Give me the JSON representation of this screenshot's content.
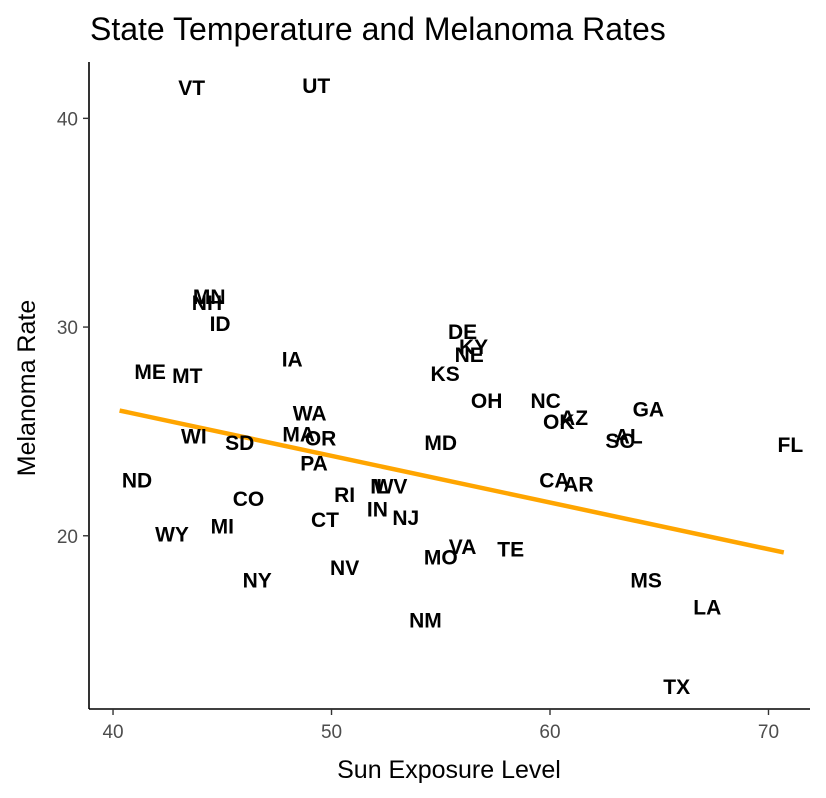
{
  "chart_data": {
    "type": "scatter",
    "title": "State Temperature and Melanoma Rates",
    "xlabel": "Sun Exposure Level",
    "ylabel": "Melanoma Rate",
    "xlim": [
      38.9,
      71.9
    ],
    "ylim": [
      11.7,
      42.7
    ],
    "x_ticks": [
      40,
      50,
      60,
      70
    ],
    "y_ticks": [
      20,
      30,
      40
    ],
    "grid": false,
    "legend": "none",
    "label_color": "#000000",
    "trend_line": {
      "color": "#FFA500",
      "x": [
        40.3,
        70.7
      ],
      "y": [
        26.0,
        19.2
      ]
    },
    "points": [
      {
        "label": "VT",
        "x": 43.6,
        "y": 41.5
      },
      {
        "label": "UT",
        "x": 49.3,
        "y": 41.6
      },
      {
        "label": "MN",
        "x": 44.4,
        "y": 31.5
      },
      {
        "label": "NH",
        "x": 44.3,
        "y": 31.2
      },
      {
        "label": "ID",
        "x": 44.9,
        "y": 30.2
      },
      {
        "label": "DE",
        "x": 56.0,
        "y": 29.8
      },
      {
        "label": "KY",
        "x": 56.5,
        "y": 29.1
      },
      {
        "label": "NE",
        "x": 56.3,
        "y": 28.7
      },
      {
        "label": "IA",
        "x": 48.2,
        "y": 28.5
      },
      {
        "label": "ME",
        "x": 41.7,
        "y": 27.9
      },
      {
        "label": "MT",
        "x": 43.4,
        "y": 27.7
      },
      {
        "label": "KS",
        "x": 55.2,
        "y": 27.8
      },
      {
        "label": "OH",
        "x": 57.1,
        "y": 26.5
      },
      {
        "label": "NC",
        "x": 59.8,
        "y": 26.5
      },
      {
        "label": "GA",
        "x": 64.5,
        "y": 26.1
      },
      {
        "label": "WA",
        "x": 49.0,
        "y": 25.9
      },
      {
        "label": "AZ",
        "x": 61.1,
        "y": 25.7
      },
      {
        "label": "OK",
        "x": 60.4,
        "y": 25.5
      },
      {
        "label": "MA",
        "x": 48.5,
        "y": 24.9
      },
      {
        "label": "OR",
        "x": 49.5,
        "y": 24.7
      },
      {
        "label": "WI",
        "x": 43.7,
        "y": 24.8
      },
      {
        "label": "AL",
        "x": 63.6,
        "y": 24.8
      },
      {
        "label": "SC",
        "x": 63.2,
        "y": 24.6
      },
      {
        "label": "SD",
        "x": 45.8,
        "y": 24.5
      },
      {
        "label": "MD",
        "x": 55.0,
        "y": 24.5
      },
      {
        "label": "FL",
        "x": 71.0,
        "y": 24.4
      },
      {
        "label": "PA",
        "x": 49.2,
        "y": 23.5
      },
      {
        "label": "ND",
        "x": 41.1,
        "y": 22.7
      },
      {
        "label": "CA",
        "x": 60.2,
        "y": 22.7
      },
      {
        "label": "AR",
        "x": 61.3,
        "y": 22.5
      },
      {
        "label": "IL",
        "x": 52.2,
        "y": 22.4
      },
      {
        "label": "WV",
        "x": 52.7,
        "y": 22.4
      },
      {
        "label": "RI",
        "x": 50.6,
        "y": 22.0
      },
      {
        "label": "CO",
        "x": 46.2,
        "y": 21.8
      },
      {
        "label": "IN",
        "x": 52.1,
        "y": 21.3
      },
      {
        "label": "NJ",
        "x": 53.4,
        "y": 20.9
      },
      {
        "label": "CT",
        "x": 49.7,
        "y": 20.8
      },
      {
        "label": "MI",
        "x": 45.0,
        "y": 20.5
      },
      {
        "label": "WY",
        "x": 42.7,
        "y": 20.1
      },
      {
        "label": "TE",
        "x": 58.2,
        "y": 19.4
      },
      {
        "label": "VA",
        "x": 56.0,
        "y": 19.5
      },
      {
        "label": "MO",
        "x": 55.0,
        "y": 19.0
      },
      {
        "label": "NV",
        "x": 50.6,
        "y": 18.5
      },
      {
        "label": "NY",
        "x": 46.6,
        "y": 17.9
      },
      {
        "label": "MS",
        "x": 64.4,
        "y": 17.9
      },
      {
        "label": "LA",
        "x": 67.2,
        "y": 16.6
      },
      {
        "label": "NM",
        "x": 54.3,
        "y": 16.0
      },
      {
        "label": "TX",
        "x": 65.8,
        "y": 12.8
      }
    ]
  }
}
